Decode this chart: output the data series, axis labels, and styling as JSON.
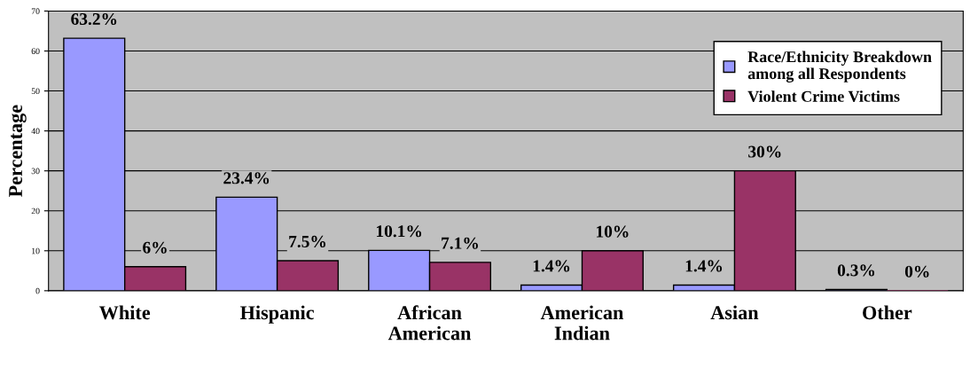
{
  "chart_data": {
    "type": "bar",
    "ylabel": "Percentage",
    "categories": [
      "White",
      "Hispanic",
      "African\nAmerican",
      "American\nIndian",
      "Asian",
      "Other"
    ],
    "series": [
      {
        "name": "Race/Ethnicity Breakdown\namong all Respondents",
        "color": "#9999ff",
        "values": [
          63.2,
          23.4,
          10.1,
          1.4,
          1.4,
          0.3
        ],
        "value_labels": [
          "63.2%",
          "23.4%",
          "10.1%",
          "1.4%",
          "1.4%",
          "0.3%"
        ]
      },
      {
        "name": "Violent Crime Victims",
        "color": "#993366",
        "values": [
          6,
          7.5,
          7.1,
          10,
          30,
          0
        ],
        "value_labels": [
          "6%",
          "7.5%",
          "7.1%",
          "10%",
          "30%",
          "0%"
        ]
      }
    ],
    "ylim": [
      0,
      70
    ],
    "yticks": [
      0,
      10,
      20,
      30,
      40,
      50,
      60,
      70
    ],
    "grid": "y",
    "legend": "top right"
  }
}
